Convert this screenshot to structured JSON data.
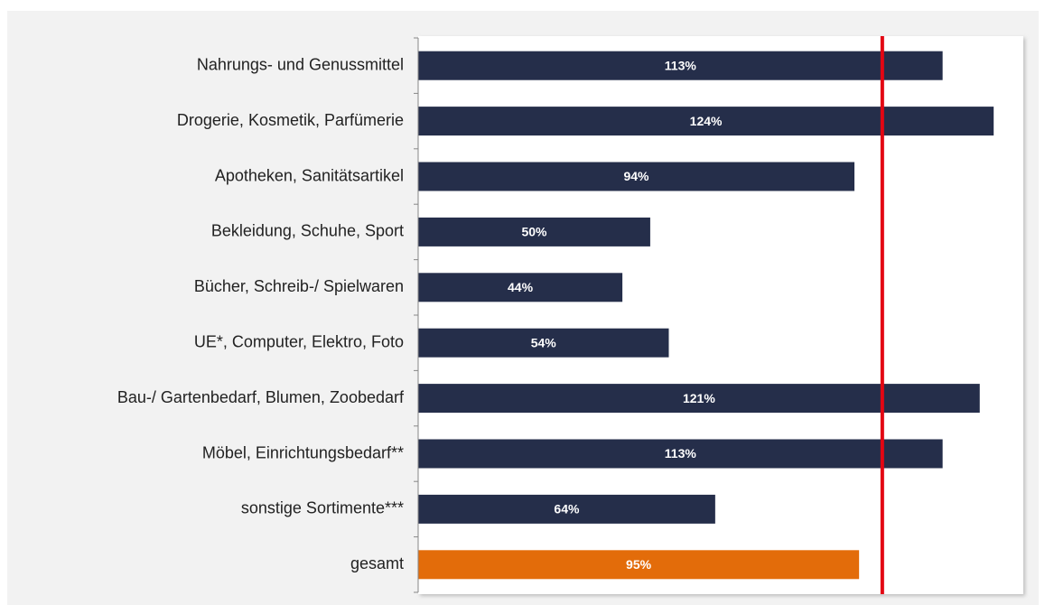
{
  "chart_data": {
    "type": "bar",
    "orientation": "horizontal",
    "categories": [
      "Nahrungs- und Genussmittel",
      "Drogerie, Kosmetik, Parfümerie",
      "Apotheken, Sanitätsartikel",
      "Bekleidung, Schuhe, Sport",
      "Bücher, Schreib-/ Spielwaren",
      "UE*, Computer, Elektro, Foto",
      "Bau-/ Gartenbedarf, Blumen, Zoobedarf",
      "Möbel, Einrichtungsbedarf**",
      "sonstige Sortimente***",
      "gesamt"
    ],
    "values": [
      113,
      124,
      94,
      50,
      44,
      54,
      121,
      113,
      64,
      95
    ],
    "value_labels": [
      "113%",
      "124%",
      "94%",
      "50%",
      "44%",
      "54%",
      "121%",
      "113%",
      "64%",
      "95%"
    ],
    "colors": [
      "#252e4a",
      "#252e4a",
      "#252e4a",
      "#252e4a",
      "#252e4a",
      "#252e4a",
      "#252e4a",
      "#252e4a",
      "#252e4a",
      "#e36c0a"
    ],
    "xlim": [
      0,
      130
    ],
    "reference_line": {
      "value": 100,
      "color": "#e30613"
    }
  }
}
